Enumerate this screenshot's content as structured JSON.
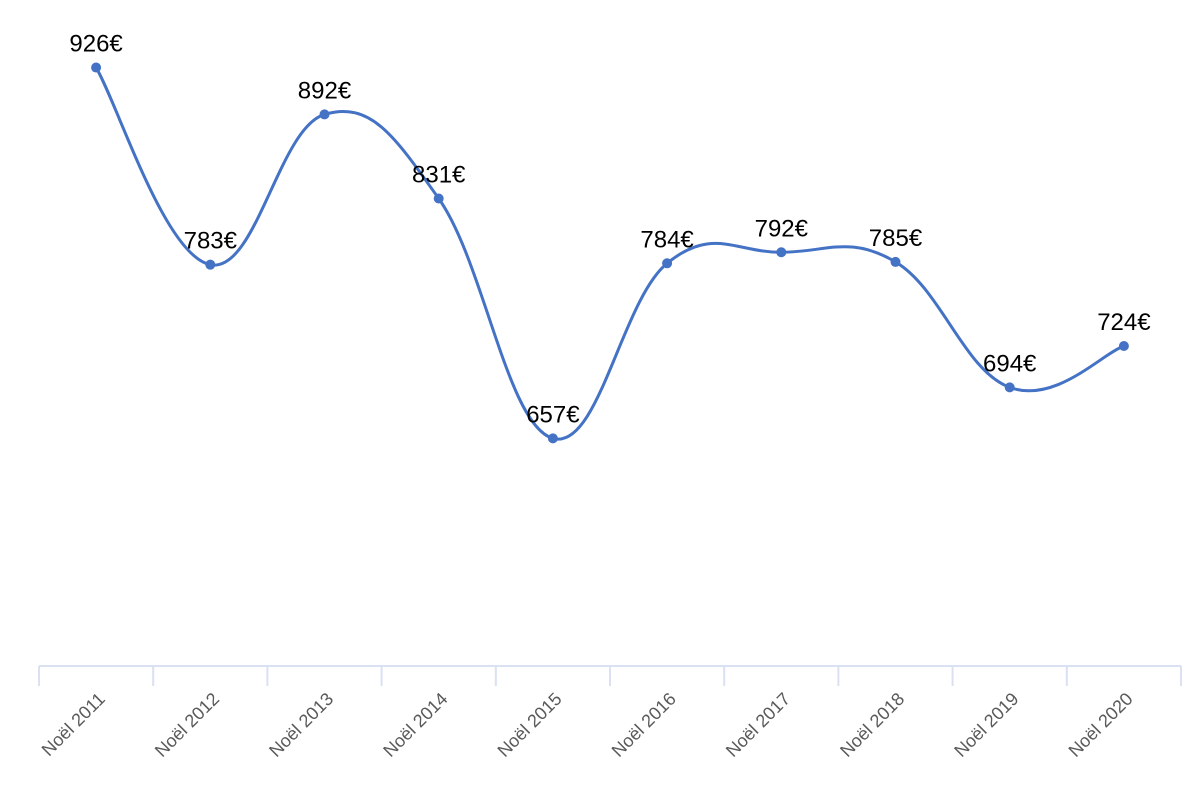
{
  "chart_data": {
    "type": "line",
    "smooth": true,
    "categories": [
      "Noël 2011",
      "Noël 2012",
      "Noël 2013",
      "Noël 2014",
      "Noël 2015",
      "Noël 2016",
      "Noël 2017",
      "Noël 2018",
      "Noël 2019",
      "Noël 2020"
    ],
    "series": [
      {
        "values": [
          926,
          783,
          892,
          831,
          657,
          784,
          792,
          785,
          694,
          724
        ],
        "color": "#4472C4"
      }
    ],
    "data_labels": [
      "926€",
      "783€",
      "892€",
      "831€",
      "657€",
      "784€",
      "792€",
      "785€",
      "694€",
      "724€"
    ],
    "title": "",
    "xlabel": "",
    "ylabel": "",
    "ylim": [
      555,
      938
    ],
    "y_axis_visible": false,
    "grid": false,
    "legend": "none",
    "axis_color": "#D9E1F2"
  }
}
